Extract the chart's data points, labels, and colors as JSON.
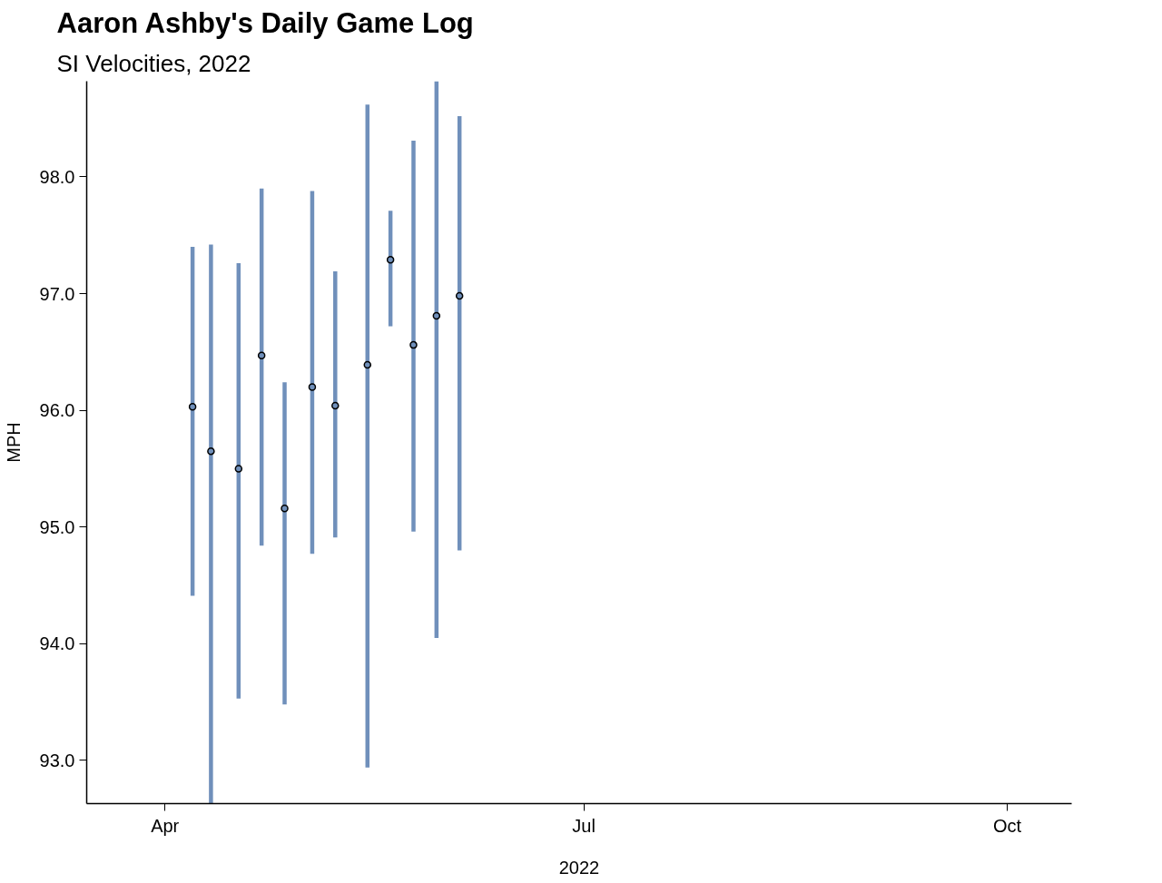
{
  "chart_data": {
    "type": "scatter",
    "title": "Aaron Ashby's Daily Game Log",
    "subtitle": "SI Velocities, 2022",
    "xlabel": "2022",
    "ylabel": "MPH",
    "x": [
      "2022-04-07",
      "2022-04-11",
      "2022-04-17",
      "2022-04-22",
      "2022-04-27",
      "2022-05-03",
      "2022-05-08",
      "2022-05-15",
      "2022-05-20",
      "2022-05-25",
      "2022-05-30",
      "2022-06-04"
    ],
    "series": [
      {
        "color": "#7090bb",
        "values": [
          96.03,
          95.65,
          95.5,
          96.47,
          95.16,
          96.2,
          96.04,
          96.39,
          97.29,
          96.56,
          96.81,
          96.98
        ],
        "errors": [
          [
            94.41,
            97.4
          ],
          [
            92.63,
            97.42
          ],
          [
            93.53,
            97.26
          ],
          [
            94.84,
            97.9
          ],
          [
            93.48,
            96.24
          ],
          [
            94.77,
            97.88
          ],
          [
            94.91,
            97.19
          ],
          [
            92.94,
            98.62
          ],
          [
            96.72,
            97.71
          ],
          [
            94.96,
            98.31
          ],
          [
            94.05,
            98.82
          ],
          [
            94.8,
            98.52
          ]
        ]
      }
    ],
    "xlim": [
      "2022-03-15",
      "2022-10-15"
    ],
    "xticks": [
      {
        "value": "2022-04-01",
        "label": "Apr"
      },
      {
        "value": "2022-07-01",
        "label": "Jul"
      },
      {
        "value": "2022-10-01",
        "label": "Oct"
      }
    ],
    "ylim": [
      92.63,
      98.82
    ],
    "yticks": [
      {
        "value": 93,
        "label": "93.0"
      },
      {
        "value": 94,
        "label": "94.0"
      },
      {
        "value": 95,
        "label": "95.0"
      },
      {
        "value": 96,
        "label": "96.0"
      },
      {
        "value": 97,
        "label": "97.0"
      },
      {
        "value": 98,
        "label": "98.0"
      }
    ],
    "grid": false,
    "marker": "circle"
  }
}
